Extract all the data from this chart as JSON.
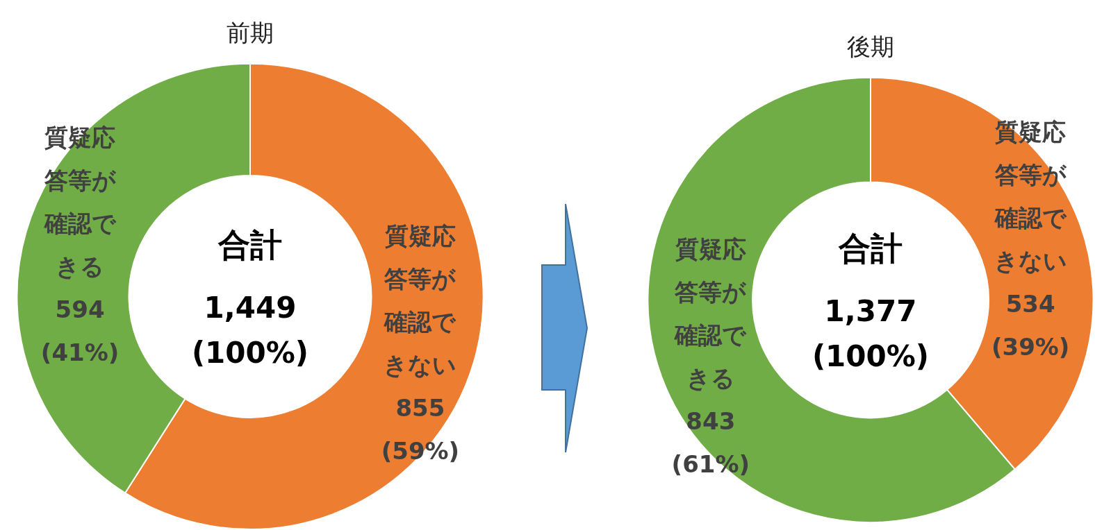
{
  "chart_data": [
    {
      "type": "donut",
      "title": "前期",
      "categories": [
        "質疑応答等が確認できない",
        "質疑応答等が確認できる"
      ],
      "values": [
        855,
        594
      ],
      "colors": [
        "#ed7d31",
        "#70ad47"
      ],
      "value_labels": [
        "855 (59%)",
        "594 (41%)"
      ],
      "annotations": [
        "合計",
        "1,449 (100%)"
      ],
      "legend": false
    },
    {
      "type": "donut",
      "title": "後期",
      "categories": [
        "質疑応答等が確認できない",
        "質疑応答等が確認できる"
      ],
      "values": [
        534,
        843
      ],
      "colors": [
        "#ed7d31",
        "#70ad47"
      ],
      "value_labels": [
        "534 (39%)",
        "843 (61%)"
      ],
      "annotations": [
        "合計",
        "1,377 (100%)"
      ],
      "legend": false
    }
  ]
}
